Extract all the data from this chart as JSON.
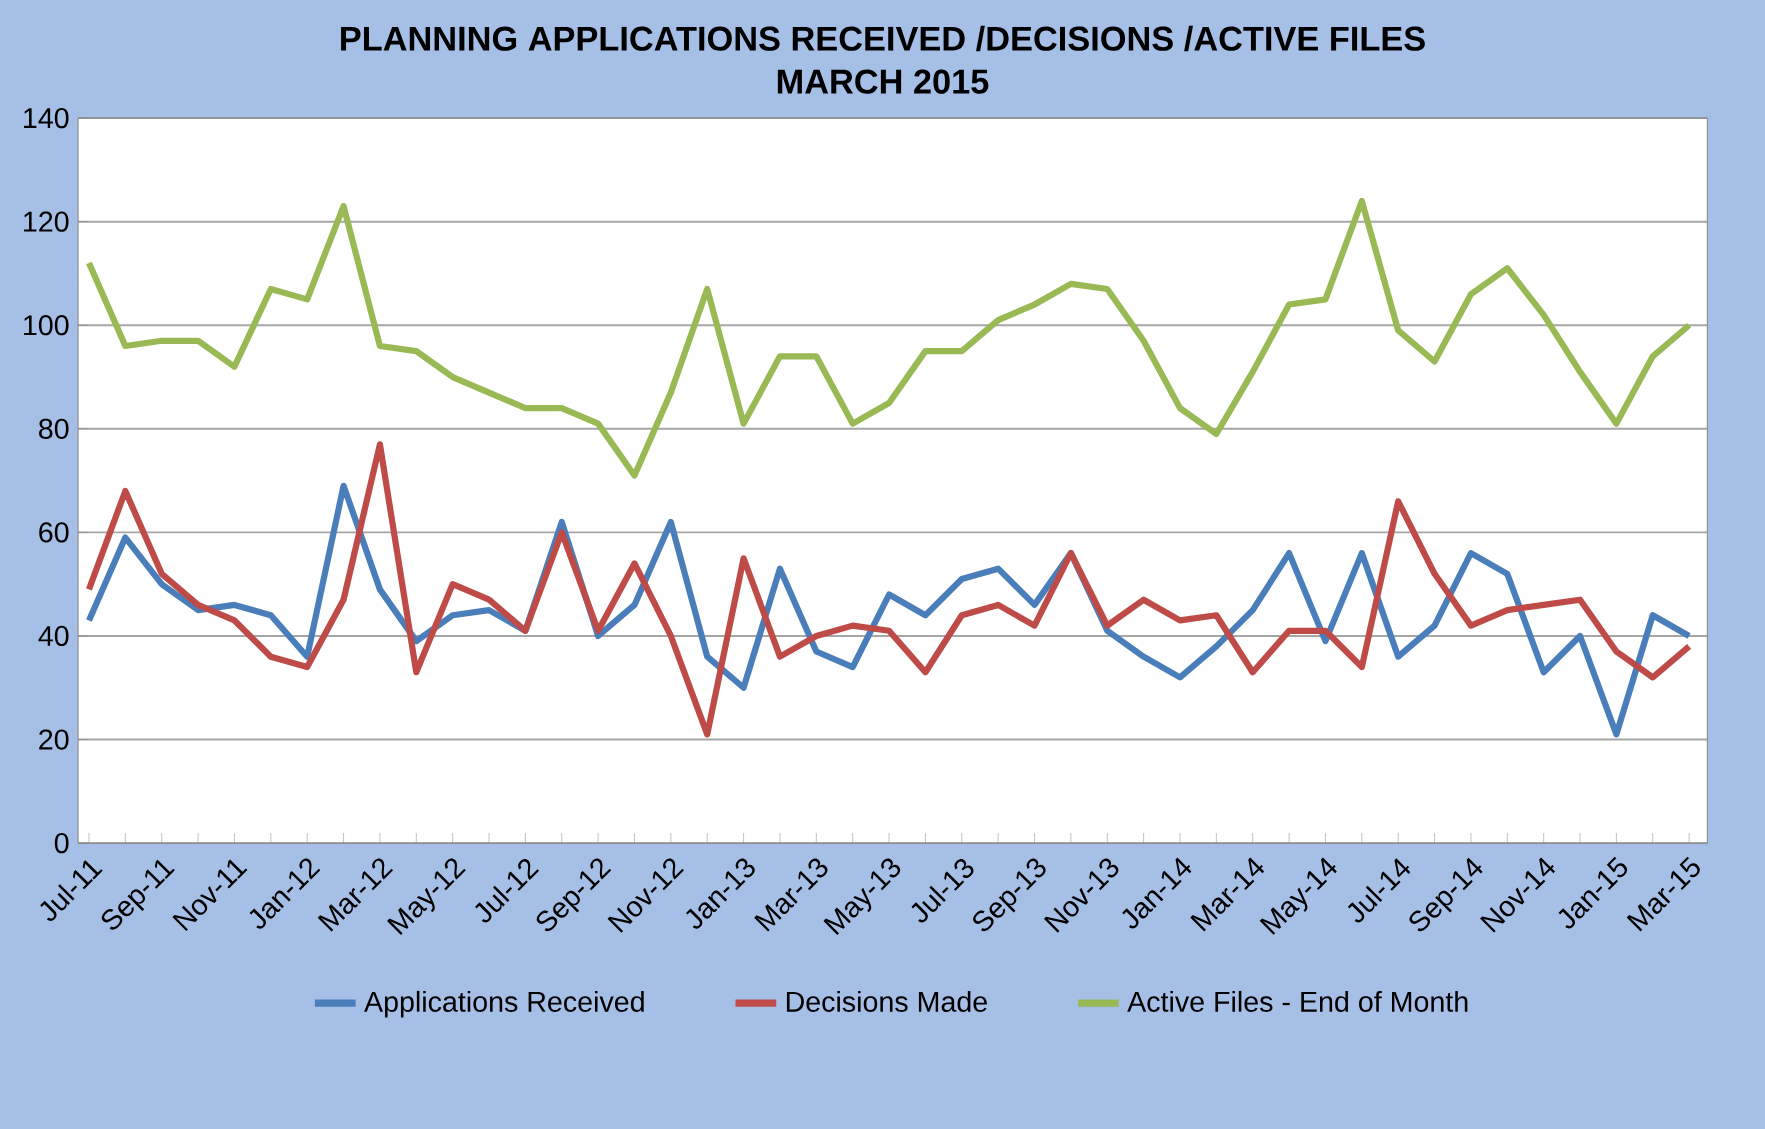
{
  "chart_data": {
    "type": "line",
    "title": "PLANNING APPLICATIONS RECEIVED /DECISIONS /ACTIVE FILES",
    "subtitle": "MARCH 2015",
    "categories": [
      "Jul-11",
      null,
      "Sep-11",
      null,
      "Nov-11",
      null,
      "Jan-12",
      null,
      "Mar-12",
      null,
      "May-12",
      null,
      "Jul-12",
      null,
      "Sep-12",
      null,
      "Nov-12",
      null,
      "Jan-13",
      null,
      "Mar-13",
      null,
      "May-13",
      null,
      "Jul-13",
      null,
      "Sep-13",
      null,
      "Nov-13",
      null,
      "Jan-14",
      null,
      "Mar-14",
      null,
      "May-14",
      null,
      "Jul-14",
      null,
      "Sep-14",
      null,
      "Nov-14",
      null,
      "Jan-15",
      null,
      "Mar-15"
    ],
    "series": [
      {
        "name": "Applications Received",
        "color": "#4a7ebb",
        "values": [
          43,
          59,
          50,
          45,
          46,
          44,
          36,
          69,
          49,
          39,
          44,
          45,
          41,
          62,
          40,
          46,
          62,
          36,
          30,
          53,
          37,
          34,
          48,
          44,
          51,
          53,
          46,
          56,
          41,
          36,
          32,
          38,
          45,
          56,
          39,
          56,
          36,
          42,
          56,
          52,
          33,
          40,
          21,
          44,
          40
        ]
      },
      {
        "name": "Decisions Made",
        "color": "#be4b48",
        "values": [
          49,
          68,
          52,
          46,
          43,
          36,
          34,
          47,
          77,
          33,
          50,
          47,
          41,
          60,
          41,
          54,
          40,
          21,
          55,
          36,
          40,
          42,
          41,
          33,
          44,
          46,
          42,
          56,
          42,
          47,
          43,
          44,
          33,
          41,
          41,
          34,
          66,
          52,
          42,
          45,
          46,
          47,
          37,
          32,
          38
        ]
      },
      {
        "name": "Active Files - End of Month",
        "color": "#98b954",
        "values": [
          112,
          96,
          97,
          97,
          92,
          107,
          105,
          123,
          96,
          95,
          90,
          87,
          84,
          84,
          81,
          71,
          87,
          107,
          81,
          94,
          94,
          81,
          85,
          95,
          95,
          101,
          104,
          108,
          107,
          97,
          84,
          79,
          91,
          104,
          105,
          124,
          99,
          93,
          106,
          111,
          102,
          91,
          81,
          94,
          100
        ]
      }
    ],
    "ylim": [
      0,
      140
    ],
    "yticks": [
      0,
      20,
      40,
      60,
      80,
      100,
      120,
      140
    ],
    "grid": "y",
    "legend": "bottom",
    "marker": "none",
    "line_style": "solid"
  }
}
